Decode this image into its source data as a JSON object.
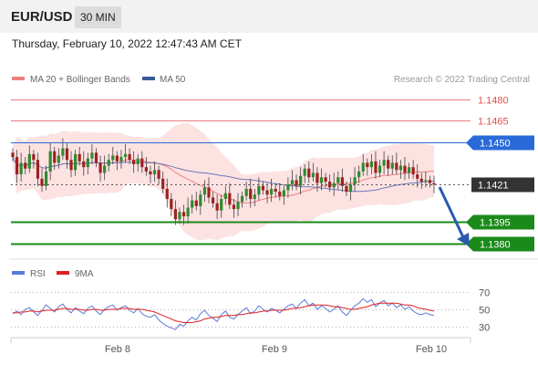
{
  "header": {
    "symbol": "EUR/USD",
    "timeframe": "30 MIN"
  },
  "datetime": "Thursday, February 10, 2022 12:47:43 AM CET",
  "chart_data": {
    "type": "candlestick",
    "legend": [
      {
        "name": "MA 20 + Bollinger Bands",
        "color": "#f08080"
      },
      {
        "name": "MA 50",
        "color": "#3a5a9a"
      }
    ],
    "credit": "Research © 2022 Trading Central",
    "price_axis": {
      "min": 1.137,
      "max": 1.1488
    },
    "levels": [
      {
        "label": "1.1480",
        "value": 1.148,
        "kind": "resistance-red",
        "color": "#e05050"
      },
      {
        "label": "1.1465",
        "value": 1.1465,
        "kind": "resistance-red",
        "color": "#e05050"
      },
      {
        "label": "1.1450",
        "value": 1.145,
        "kind": "pivot-blue",
        "color": "#2a6ad8"
      },
      {
        "label": "1.1421",
        "value": 1.1421,
        "kind": "current",
        "color": "#333333"
      },
      {
        "label": "1.1395",
        "value": 1.1395,
        "kind": "support-green",
        "color": "#1a8a1a"
      },
      {
        "label": "1.1380",
        "value": 1.138,
        "kind": "support-green",
        "color": "#1a8a1a"
      }
    ],
    "x_labels": [
      "Feb 8",
      "Feb 9",
      "Feb 10"
    ],
    "rsi": {
      "legend": [
        {
          "name": "RSI",
          "color": "#5a7ad8"
        },
        {
          "name": "9MA",
          "color": "#e02020"
        }
      ],
      "ticks": [
        "70",
        "50",
        "30"
      ],
      "tick_values": [
        70,
        50,
        30
      ],
      "range": [
        20,
        80
      ]
    },
    "candles_close": [
      1.144,
      1.1428,
      1.1436,
      1.1432,
      1.1442,
      1.1438,
      1.1425,
      1.142,
      1.143,
      1.1444,
      1.1436,
      1.1441,
      1.1446,
      1.1438,
      1.1431,
      1.1442,
      1.1437,
      1.1433,
      1.1439,
      1.1443,
      1.1436,
      1.1429,
      1.1434,
      1.1438,
      1.1441,
      1.1437,
      1.144,
      1.1442,
      1.1438,
      1.1435,
      1.1439,
      1.1433,
      1.143,
      1.1428,
      1.1431,
      1.1425,
      1.1418,
      1.1411,
      1.1404,
      1.1397,
      1.1402,
      1.1399,
      1.1405,
      1.141,
      1.1406,
      1.1414,
      1.1419,
      1.1412,
      1.1408,
      1.1403,
      1.1411,
      1.1415,
      1.1407,
      1.1404,
      1.1409,
      1.1413,
      1.1418,
      1.1411,
      1.1414,
      1.142,
      1.1417,
      1.1414,
      1.1418,
      1.1416,
      1.1413,
      1.1417,
      1.1421,
      1.1424,
      1.142,
      1.1427,
      1.1432,
      1.1426,
      1.1429,
      1.1422,
      1.1426,
      1.1423,
      1.1419,
      1.1422,
      1.1426,
      1.142,
      1.1416,
      1.1421,
      1.1426,
      1.143,
      1.1436,
      1.1433,
      1.1437,
      1.1429,
      1.1434,
      1.1438,
      1.1432,
      1.1436,
      1.1431,
      1.1434,
      1.1429,
      1.1433,
      1.1428,
      1.1425,
      1.1423,
      1.1424,
      1.1422,
      1.1421
    ],
    "rsi_values": [
      45,
      48,
      44,
      50,
      52,
      47,
      43,
      49,
      55,
      51,
      47,
      53,
      56,
      50,
      46,
      52,
      48,
      45,
      51,
      54,
      48,
      44,
      50,
      53,
      55,
      49,
      52,
      54,
      49,
      46,
      51,
      45,
      42,
      41,
      44,
      38,
      34,
      31,
      29,
      27,
      33,
      31,
      37,
      41,
      38,
      45,
      49,
      43,
      40,
      36,
      44,
      48,
      41,
      39,
      44,
      48,
      52,
      45,
      48,
      54,
      50,
      47,
      51,
      49,
      46,
      50,
      54,
      56,
      51,
      57,
      61,
      54,
      57,
      50,
      54,
      51,
      47,
      50,
      54,
      47,
      43,
      49,
      54,
      57,
      62,
      58,
      61,
      53,
      57,
      60,
      54,
      57,
      52,
      55,
      50,
      53,
      48,
      45,
      44,
      46,
      44,
      43
    ],
    "rsi_ma_values": [
      46,
      46,
      47,
      47,
      48,
      48,
      47,
      48,
      49,
      49,
      49,
      50,
      51,
      51,
      50,
      50,
      50,
      49,
      49,
      50,
      50,
      49,
      49,
      50,
      50,
      50,
      51,
      51,
      51,
      50,
      50,
      50,
      49,
      48,
      47,
      45,
      43,
      41,
      39,
      37,
      36,
      35,
      35,
      35,
      36,
      37,
      39,
      40,
      41,
      41,
      42,
      43,
      43,
      43,
      44,
      44,
      45,
      46,
      46,
      47,
      48,
      48,
      49,
      49,
      49,
      49,
      50,
      51,
      51,
      52,
      53,
      54,
      55,
      55,
      55,
      55,
      54,
      53,
      53,
      52,
      51,
      50,
      50,
      51,
      52,
      53,
      55,
      56,
      57,
      57,
      57,
      57,
      57,
      56,
      55,
      55,
      54,
      52,
      51,
      50,
      49,
      48
    ]
  }
}
